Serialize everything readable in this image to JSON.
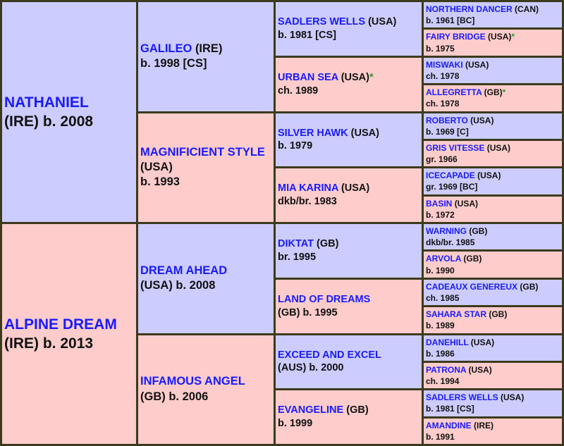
{
  "colors": {
    "sire_bg": "#ccccff",
    "dam_bg": "#ffcccc",
    "name": "#1a1aff",
    "star": "#2a9a2a",
    "border": "#3b3a1c"
  },
  "generations": [
    [
      {
        "name": "NATHANIEL",
        "country": "(IRE)",
        "detail": "b. 2008"
      },
      {
        "name": "ALPINE DREAM",
        "country": "(IRE)",
        "detail": "b. 2013"
      }
    ],
    [
      {
        "name": "GALILEO",
        "country": "(IRE)",
        "detail": "b. 1998 [CS]"
      },
      {
        "name": "MAGNIFICIENT STYLE",
        "country": "(USA)",
        "detail": "b. 1993"
      },
      {
        "name": "DREAM AHEAD",
        "country": "(USA)",
        "detail": "b. 2008"
      },
      {
        "name": "INFAMOUS ANGEL",
        "country": "(GB)",
        "detail": "b. 2006"
      }
    ],
    [
      {
        "name": "SADLERS WELLS",
        "country": "(USA)",
        "detail": "b. 1981 [CS]"
      },
      {
        "name": "URBAN SEA",
        "country": "(USA)",
        "star": "*",
        "detail": "ch. 1989"
      },
      {
        "name": "SILVER HAWK",
        "country": "(USA)",
        "detail": "b. 1979"
      },
      {
        "name": "MIA KARINA",
        "country": "(USA)",
        "detail": "dkb/br. 1983"
      },
      {
        "name": "DIKTAT",
        "country": "(GB)",
        "detail": "br. 1995"
      },
      {
        "name": "LAND OF DREAMS",
        "country": "(GB)",
        "detail": "b. 1995"
      },
      {
        "name": "EXCEED AND EXCEL",
        "country": "(AUS)",
        "detail": "b. 2000"
      },
      {
        "name": "EVANGELINE",
        "country": "(GB)",
        "detail": "b. 1999"
      }
    ],
    [
      {
        "name": "NORTHERN DANCER",
        "country": "(CAN)",
        "detail": "b. 1961 [BC]"
      },
      {
        "name": "FAIRY BRIDGE",
        "country": "(USA)",
        "star": "*",
        "detail": "b. 1975"
      },
      {
        "name": "MISWAKI",
        "country": "(USA)",
        "detail": "ch. 1978"
      },
      {
        "name": "ALLEGRETTA",
        "country": "(GB)",
        "star": "*",
        "detail": "ch. 1978"
      },
      {
        "name": "ROBERTO",
        "country": "(USA)",
        "detail": "b. 1969 [C]"
      },
      {
        "name": "GRIS VITESSE",
        "country": "(USA)",
        "detail": "gr. 1966"
      },
      {
        "name": "ICECAPADE",
        "country": "(USA)",
        "detail": "gr. 1969 [BC]"
      },
      {
        "name": "BASIN",
        "country": "(USA)",
        "detail": "b. 1972"
      },
      {
        "name": "WARNING",
        "country": "(GB)",
        "detail": "dkb/br. 1985"
      },
      {
        "name": "ARVOLA",
        "country": "(GB)",
        "detail": "b. 1990"
      },
      {
        "name": "CADEAUX GENEREUX",
        "country": "(GB)",
        "detail": "ch. 1985"
      },
      {
        "name": "SAHARA STAR",
        "country": "(GB)",
        "detail": "b. 1989"
      },
      {
        "name": "DANEHILL",
        "country": "(USA)",
        "detail": "b. 1986"
      },
      {
        "name": "PATRONA",
        "country": "(USA)",
        "detail": "ch. 1994"
      },
      {
        "name": "SADLERS WELLS",
        "country": "(USA)",
        "detail": "b. 1981 [CS]"
      },
      {
        "name": "AMANDINE",
        "country": "(IRE)",
        "detail": "b. 1991"
      }
    ]
  ]
}
